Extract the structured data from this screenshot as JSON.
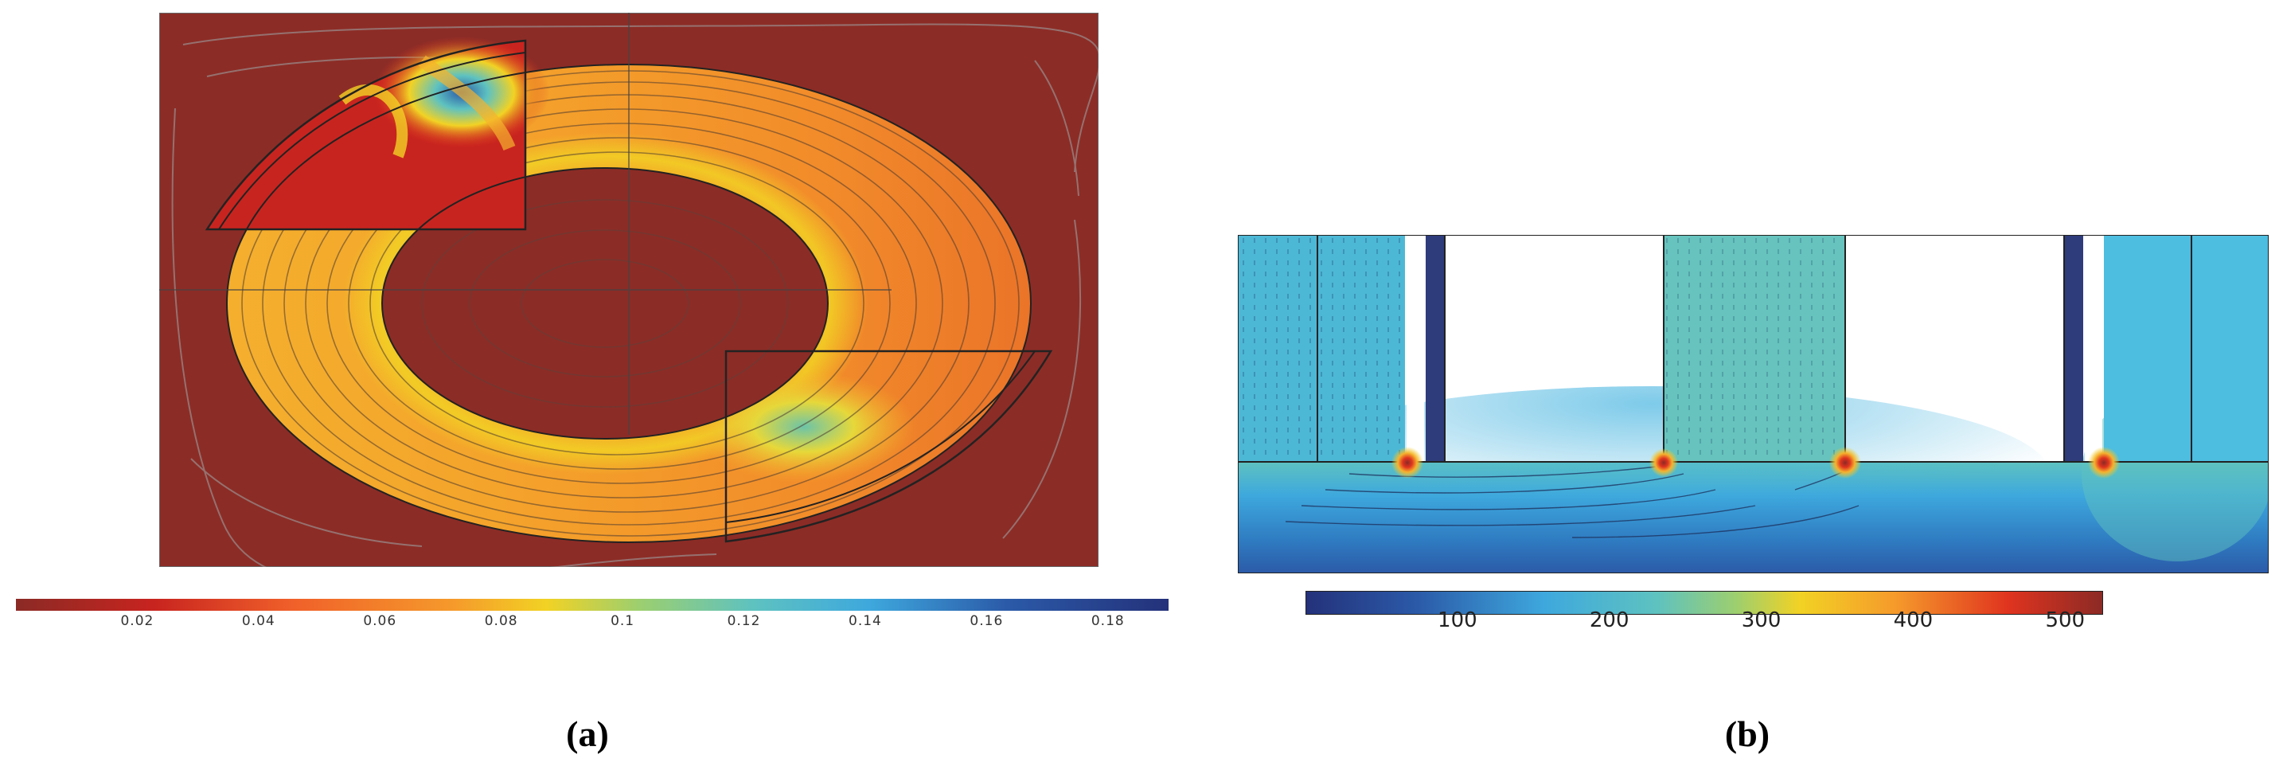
{
  "panel_a": {
    "colorbar": {
      "ticks": [
        "0.02",
        "0.04",
        "0.06",
        "0.08",
        "0.1",
        "0.12",
        "0.14",
        "0.16",
        "0.18"
      ],
      "min": 0,
      "max": 0.19,
      "colormap": [
        "#8b2a25",
        "#c8241f",
        "#f0602a",
        "#f59a2b",
        "#f2d224",
        "#9dcf6e",
        "#5ec2c0",
        "#3ea8dd",
        "#2b5aa8",
        "#24317a"
      ]
    },
    "caption": "(a)"
  },
  "panel_b": {
    "colorbar": {
      "ticks": [
        "100",
        "200",
        "300",
        "400",
        "500"
      ],
      "tick_values": [
        100,
        200,
        300,
        400,
        500
      ],
      "min": 0,
      "max": 525,
      "colormap": [
        "#24317a",
        "#2b5aa8",
        "#3ea8dd",
        "#5ec2c0",
        "#9dcf6e",
        "#f2d224",
        "#f59a2b",
        "#e0341f",
        "#8b2a25"
      ]
    },
    "caption": "(b)"
  }
}
